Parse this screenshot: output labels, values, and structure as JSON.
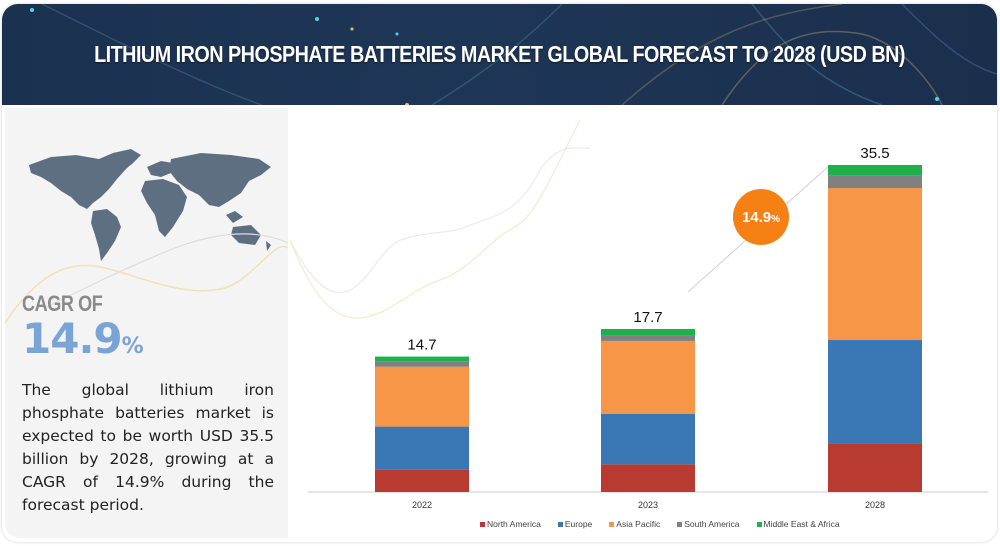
{
  "header": {
    "title": "LITHIUM IRON PHOSPHATE BATTERIES MARKET GLOBAL FORECAST TO 2028 (USD BN)"
  },
  "left_panel": {
    "map_icon": "world-map",
    "cagr_label": "CAGR OF",
    "cagr_value": "14.9",
    "cagr_unit": "%",
    "description": "The global lithium iron phosphate batteries market is expected to be worth USD 35.5 billion by 2028, growing at a CAGR of 14.9% during the forecast period."
  },
  "cagr_badge": {
    "value": "14.9",
    "unit": "%",
    "color": "#f68014"
  },
  "chart_data": {
    "type": "bar",
    "stacked": true,
    "title": "Lithium Iron Phosphate Batteries Market Global Forecast to 2028 (USD BN)",
    "xlabel": "",
    "ylabel": "",
    "categories": [
      "2022",
      "2023",
      "2028"
    ],
    "totals": [
      "14.7",
      "17.7",
      "35.5"
    ],
    "series": [
      {
        "name": "North America",
        "color": "#b83a30",
        "values": [
          2.4,
          3.0,
          5.3
        ]
      },
      {
        "name": "Europe",
        "color": "#3a78b5",
        "values": [
          4.7,
          5.5,
          11.2
        ]
      },
      {
        "name": "Asia Pacific",
        "color": "#f79646",
        "values": [
          6.5,
          7.9,
          16.5
        ]
      },
      {
        "name": "South America",
        "color": "#808080",
        "values": [
          0.6,
          0.6,
          1.4
        ]
      },
      {
        "name": "Middle East & Africa",
        "color": "#1db14b",
        "values": [
          0.5,
          0.7,
          1.1
        ]
      }
    ],
    "ylim": [
      0,
      35.5
    ],
    "grid": false,
    "legend_position": "bottom"
  }
}
